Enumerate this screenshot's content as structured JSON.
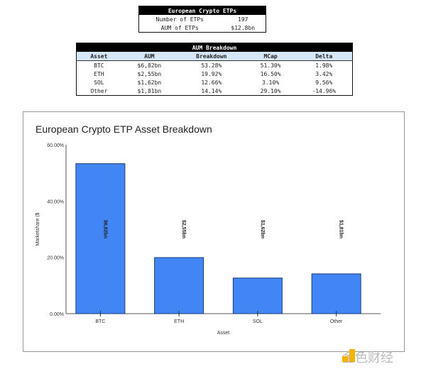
{
  "summary_table": {
    "title": "European Crypto ETPs",
    "rows": [
      {
        "label": "Number of ETPs",
        "value": "197"
      },
      {
        "label": "AUM of ETPs",
        "value": "$12.8bn"
      }
    ]
  },
  "aum_table": {
    "title": "AUM Breakdown",
    "columns": [
      "Asset",
      "AUM",
      "Breakdown",
      "MCap",
      "Delta"
    ],
    "rows": [
      [
        "BTC",
        "$6,82bn",
        "53.28%",
        "51.30%",
        "1.98%"
      ],
      [
        "ETH",
        "$2,55bn",
        "19.92%",
        "16.50%",
        "3.42%"
      ],
      [
        "SOL",
        "$1,62bn",
        "12.66%",
        "3.10%",
        "9.56%"
      ],
      [
        "Other",
        "$1,81bn",
        "14.14%",
        "29.10%",
        "-14.96%"
      ]
    ]
  },
  "chart_data": {
    "type": "bar",
    "title": "European Crypto ETP Asset Breakdown",
    "xlabel": "Asset",
    "ylabel": "Marketshare ($",
    "categories": [
      "BTC",
      "ETH",
      "SOL",
      "Other"
    ],
    "values": [
      53.28,
      19.92,
      12.66,
      14.14
    ],
    "data_labels": [
      "$6,82bn",
      "$2,55bn",
      "$1,62bn",
      "$1,81bn"
    ],
    "ylim": [
      0,
      60
    ],
    "yticks": [
      "0.00%",
      "20.00%",
      "40.00%",
      "60.00%"
    ],
    "bar_color": "#4285f4",
    "grid": false
  },
  "watermark": {
    "text": "金色财经"
  }
}
